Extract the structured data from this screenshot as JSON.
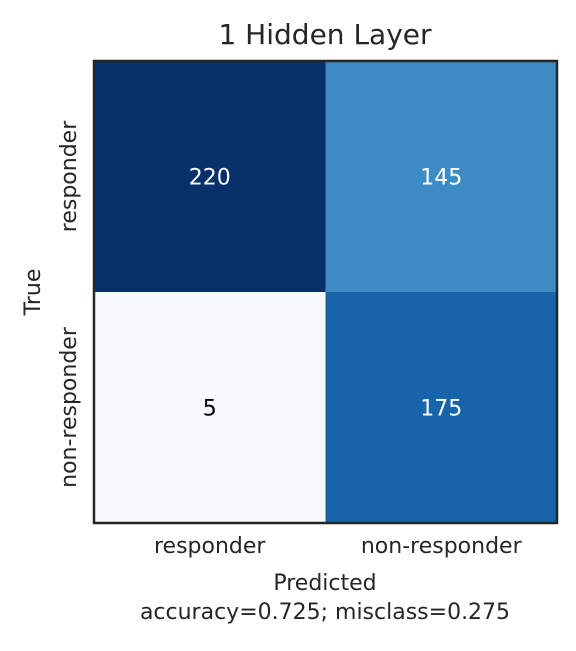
{
  "chart_data": {
    "type": "heatmap",
    "title": "1 Hidden Layer",
    "xlabel": "Predicted",
    "xlabel_sub": "accuracy=0.725; misclass=0.275",
    "ylabel": "True",
    "x_categories": [
      "responder",
      "non-responder"
    ],
    "y_categories": [
      "responder",
      "non-responder"
    ],
    "values": [
      [
        220,
        145
      ],
      [
        5,
        175
      ]
    ],
    "colormap": "Blues",
    "cell_colors": [
      [
        "#08306b",
        "#3c8bc4"
      ],
      [
        "#f7fbff",
        "#1764ab"
      ]
    ],
    "value_text_colors": [
      [
        "#ffffff",
        "#ffffff"
      ],
      [
        "#000000",
        "#ffffff"
      ]
    ],
    "frame_color": "#262626",
    "grid": false
  }
}
